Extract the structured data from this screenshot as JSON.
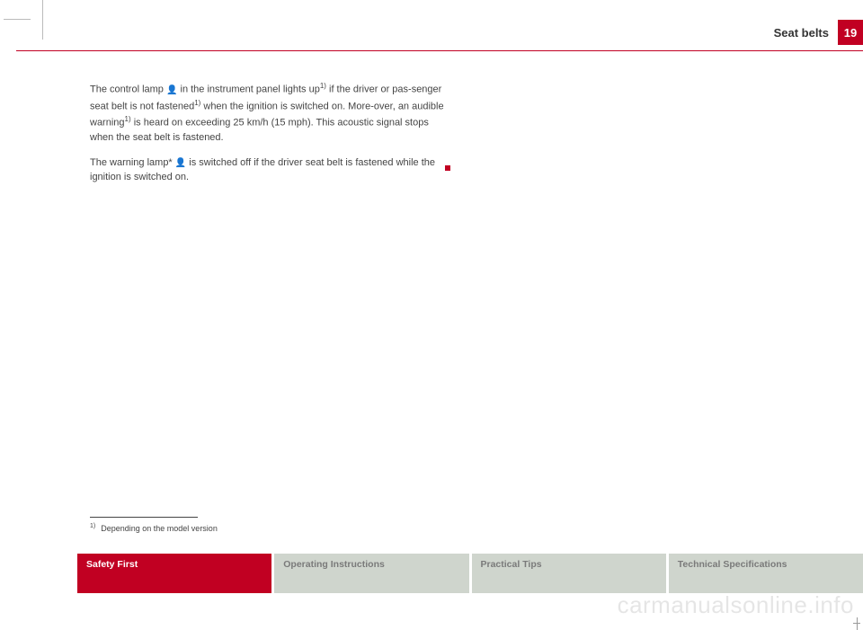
{
  "header": {
    "section_title": "Seat belts",
    "page_number": "19"
  },
  "body": {
    "p1_a": "The control lamp ",
    "icon1": "👤",
    "p1_b": " in the instrument panel lights up",
    "sup1": "1)",
    "p1_c": " if the driver or pas-senger seat belt is not fastened",
    "sup2": "1)",
    "p1_d": " when the ignition is switched on. More-over, an audible warning",
    "sup3": "1)",
    "p1_e": " is heard on exceeding 25 km/h (15 mph). This acoustic signal stops when the seat belt is fastened.",
    "p2_a": "The warning lamp* ",
    "icon2": "👤",
    "p2_b": " is switched off if the driver seat belt is fastened while the ignition is switched on."
  },
  "footnote": {
    "marker": "1)",
    "text": "Depending on the model version"
  },
  "tabs": {
    "t1": "Safety First",
    "t2": "Operating Instructions",
    "t3": "Practical Tips",
    "t4": "Technical Specifications"
  },
  "watermark": "carmanualsonline.info"
}
